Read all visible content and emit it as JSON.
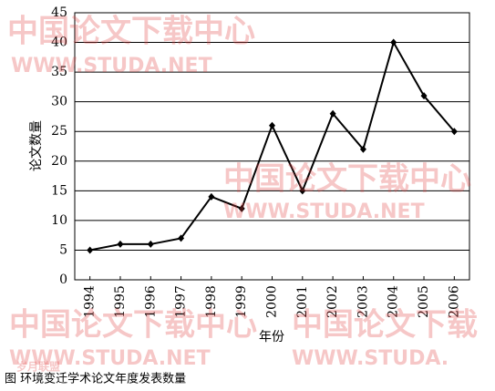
{
  "chart_data": {
    "type": "line",
    "caption": "图 环境变迁学术论文年度发表数量",
    "y_label": "论文数量",
    "x_label": "年份",
    "categories": [
      "1994",
      "1995",
      "1996",
      "1997",
      "1998",
      "1999",
      "2000",
      "2001",
      "2002",
      "2003",
      "2004",
      "2005",
      "2006"
    ],
    "values": [
      5,
      6,
      6,
      7,
      14,
      12,
      26,
      15,
      28,
      22,
      40,
      31,
      25
    ],
    "color": "#000000",
    "ylim": [
      0,
      45
    ],
    "yticks": [
      0,
      5,
      10,
      15,
      20,
      25,
      30,
      35,
      40,
      45
    ],
    "grid": true,
    "watermarks": [
      "中国论文下载中心",
      "WWW.STUDA.NET",
      "中国论文下载中心",
      "WWW.STUDA.NET",
      "中国论文下载中心",
      "WWW.STUDA.NET",
      "中国论文下载",
      "WWW.STUDA.",
      "岁月联盟"
    ]
  }
}
